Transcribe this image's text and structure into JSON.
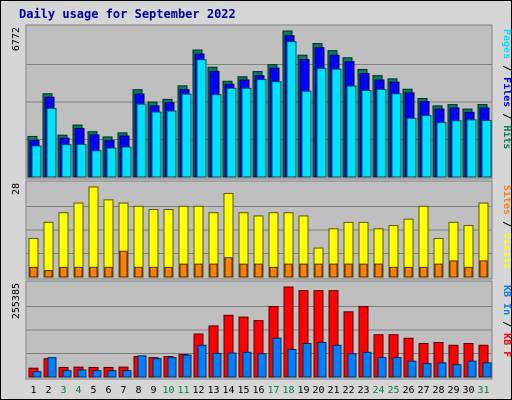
{
  "chart_data": {
    "type": "bar",
    "title": "Daily usage for September 2022",
    "x": [
      "1",
      "2",
      "3",
      "4",
      "5",
      "6",
      "7",
      "8",
      "9",
      "10",
      "11",
      "12",
      "13",
      "14",
      "15",
      "16",
      "17",
      "18",
      "19",
      "20",
      "21",
      "22",
      "23",
      "24",
      "25",
      "26",
      "27",
      "28",
      "29",
      "30",
      "31"
    ],
    "weekend_days": [
      "3",
      "4",
      "10",
      "11",
      "17",
      "18",
      "24",
      "25",
      "31"
    ],
    "panels": [
      {
        "id": "pages",
        "max_label": "6772",
        "ylim": [
          0,
          6772
        ],
        "series": [
          {
            "name": "Hits",
            "color": "#00805c",
            "values": [
              1880,
              3860,
              1940,
              2410,
              2100,
              1860,
              2050,
              4050,
              3480,
              3600,
              4230,
              5890,
              5090,
              4440,
              4650,
              4890,
              5210,
              6772,
              5650,
              6190,
              5860,
              5530,
              4990,
              4700,
              4550,
              4070,
              3640,
              3300,
              3360,
              3150,
              3360
            ]
          },
          {
            "name": "Files",
            "color": "#0000ff",
            "values": [
              1700,
              3700,
              1800,
              2250,
              1950,
              1700,
              1900,
              3850,
              3300,
              3450,
              4050,
              5700,
              4900,
              4300,
              4500,
              4700,
              5050,
              6550,
              5450,
              6000,
              5650,
              5350,
              4800,
              4500,
              4400,
              3900,
              3500,
              3150,
              3200,
              3000,
              3200
            ]
          },
          {
            "name": "Pages",
            "color": "#00e0ff",
            "values": [
              1440,
              3180,
              1500,
              1510,
              1220,
              1340,
              1390,
              3380,
              3010,
              3060,
              3840,
              5440,
              3820,
              4110,
              4110,
              4520,
              4420,
              6280,
              3980,
              5030,
              5000,
              4220,
              4010,
              4060,
              3860,
              2720,
              2850,
              2520,
              2610,
              2650,
              2620
            ]
          }
        ]
      },
      {
        "id": "visits",
        "max_label": "28",
        "ylim": [
          0,
          28
        ],
        "series": [
          {
            "name": "Visits",
            "color": "#ffff00",
            "values": [
              12,
              17,
              20,
              23,
              28,
              24,
              23,
              22,
              21,
              21,
              22,
              22,
              20,
              26,
              20,
              19,
              20,
              20,
              19,
              9,
              15,
              17,
              17,
              15,
              16,
              18,
              22,
              12,
              17,
              16,
              23
            ]
          },
          {
            "name": "Sites",
            "color": "#ff8000",
            "values": [
              3,
              2,
              3,
              3,
              3,
              3,
              8,
              3,
              3,
              3,
              4,
              4,
              4,
              6,
              4,
              4,
              3,
              4,
              4,
              4,
              4,
              4,
              4,
              4,
              3,
              3,
              3,
              4,
              5,
              3,
              5
            ]
          }
        ]
      },
      {
        "id": "kbytes",
        "max_label": "255385",
        "ylim": [
          0,
          255385
        ],
        "series": [
          {
            "name": "KB F",
            "color": "#ff0000",
            "values": [
              25000,
              52000,
              27000,
              28000,
              27000,
              27000,
              28000,
              58000,
              55000,
              58000,
              64000,
              122000,
              145000,
              175000,
              170000,
              160000,
              200000,
              255385,
              245000,
              245000,
              245000,
              185000,
              200000,
              120000,
              120000,
              110000,
              95000,
              98000,
              90000,
              95000,
              90000
            ]
          },
          {
            "name": "KB In",
            "color": "#0080ff",
            "values": [
              15000,
              55000,
              18000,
              20000,
              18000,
              18000,
              18000,
              60000,
              52000,
              55000,
              62000,
              90000,
              67000,
              68000,
              70000,
              66000,
              110000,
              78000,
              95000,
              98000,
              90000,
              66000,
              70000,
              55000,
              55000,
              45000,
              38000,
              40000,
              35000,
              45000,
              40000
            ]
          }
        ]
      }
    ],
    "legend_position": "right",
    "grid": true
  },
  "colors": {
    "plot_bg": "#bfbfbf",
    "frame_bg": "#d6d6d6",
    "grid": "#808080",
    "weekday_label": "#000000",
    "weekend_label": "#008040",
    "title": "#0000a0"
  }
}
